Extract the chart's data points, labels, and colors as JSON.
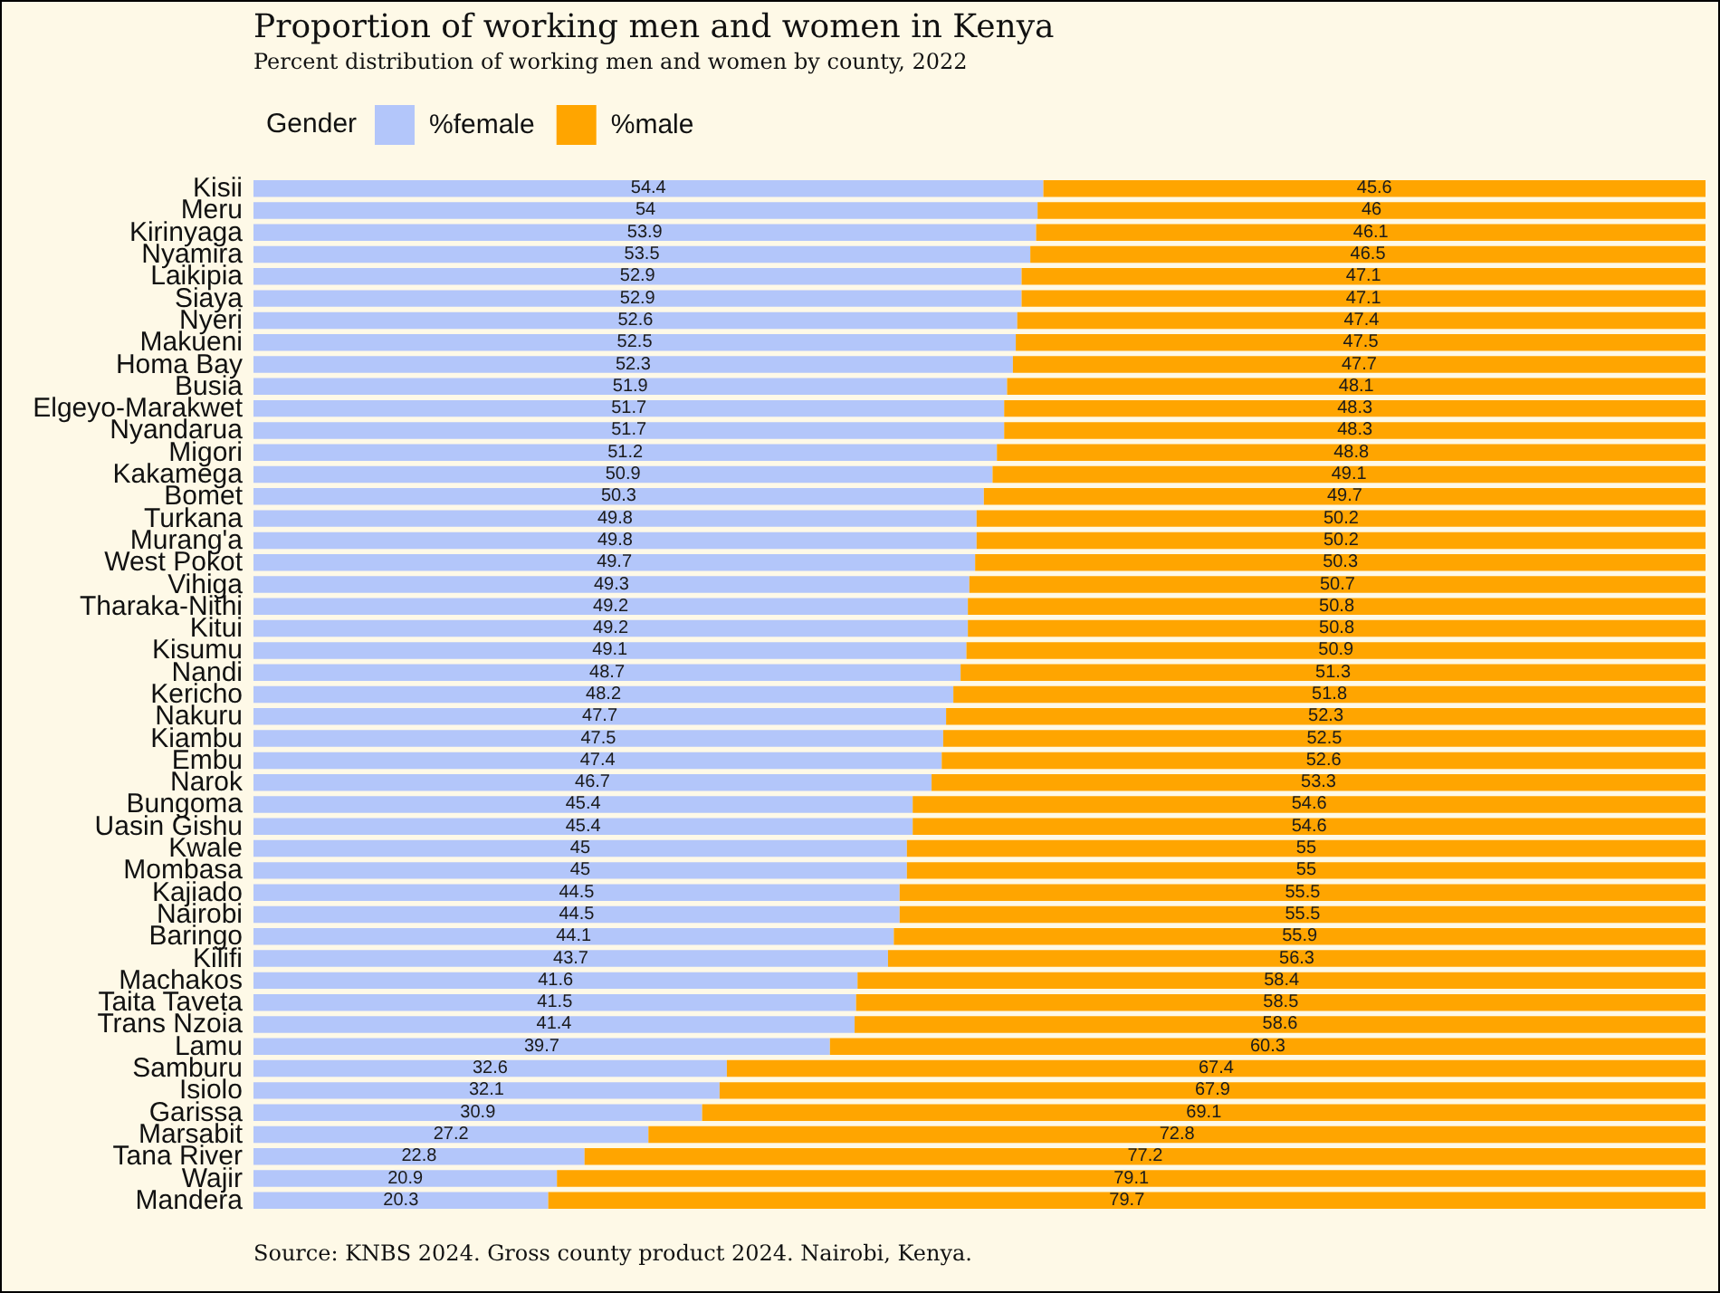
{
  "chart_data": {
    "type": "bar",
    "orientation": "horizontal",
    "stacked": true,
    "data_labels": true,
    "legend": "top left",
    "tick_labels": "y",
    "title": "Proportion of working men and women in Kenya",
    "subtitle": "Percent distribution of working men and women by county, 2022",
    "legend_title": "Gender",
    "annotations": [
      "Source: KNBS 2024. Gross county product 2024. Nairobi, Kenya."
    ],
    "categories": [
      "Kisii",
      "Meru",
      "Kirinyaga",
      "Nyamira",
      "Laikipia",
      "Siaya",
      "Nyeri",
      "Makueni",
      "Homa Bay",
      "Busia",
      "Elgeyo-Marakwet",
      "Nyandarua",
      "Migori",
      "Kakamega",
      "Bomet",
      "Turkana",
      "Murang'a",
      "West Pokot",
      "Vihiga",
      "Tharaka-Nithi",
      "Kitui",
      "Kisumu",
      "Nandi",
      "Kericho",
      "Nakuru",
      "Kiambu",
      "Embu",
      "Narok",
      "Bungoma",
      "Uasin Gishu",
      "Kwale",
      "Mombasa",
      "Kajiado",
      "Nairobi",
      "Baringo",
      "Kilifi",
      "Machakos",
      "Taita Taveta",
      "Trans Nzoia",
      "Lamu",
      "Samburu",
      "Isiolo",
      "Garissa",
      "Marsabit",
      "Tana River",
      "Wajir",
      "Mandera"
    ],
    "series": [
      {
        "name": "%female",
        "color": "#b3c6fa",
        "values": [
          54.4,
          54,
          53.9,
          53.5,
          52.9,
          52.9,
          52.6,
          52.5,
          52.3,
          51.9,
          51.7,
          51.7,
          51.2,
          50.9,
          50.3,
          49.8,
          49.8,
          49.7,
          49.3,
          49.2,
          49.2,
          49.1,
          48.7,
          48.2,
          47.7,
          47.5,
          47.4,
          46.7,
          45.4,
          45.4,
          45,
          45,
          44.5,
          44.5,
          44.1,
          43.7,
          41.6,
          41.5,
          41.4,
          39.7,
          32.6,
          32.1,
          30.9,
          27.2,
          22.8,
          20.9,
          20.3
        ]
      },
      {
        "name": "%male",
        "color": "#ffa500",
        "values": [
          45.6,
          46,
          46.1,
          46.5,
          47.1,
          47.1,
          47.4,
          47.5,
          47.7,
          48.1,
          48.3,
          48.3,
          48.8,
          49.1,
          49.7,
          50.2,
          50.2,
          50.3,
          50.7,
          50.8,
          50.8,
          50.9,
          51.3,
          51.8,
          52.3,
          52.5,
          52.6,
          53.3,
          54.6,
          54.6,
          55,
          55,
          55.5,
          55.5,
          55.9,
          56.3,
          58.4,
          58.5,
          58.6,
          60.3,
          67.4,
          67.9,
          69.1,
          72.8,
          77.2,
          79.1,
          79.7
        ]
      }
    ]
  }
}
